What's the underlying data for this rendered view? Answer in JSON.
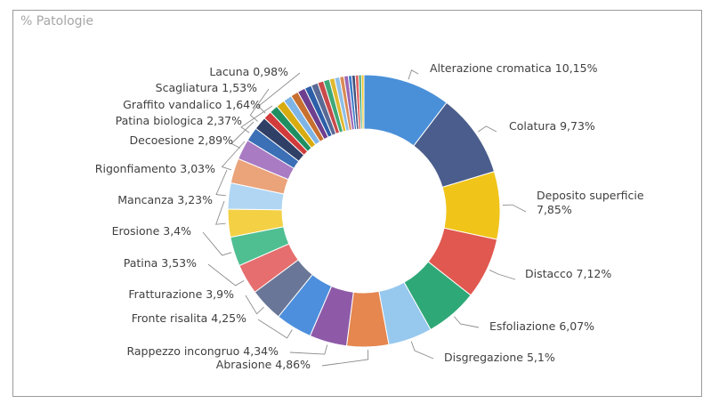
{
  "card": {
    "title": "% Patologie"
  },
  "chart_data": {
    "type": "pie",
    "variant": "donut",
    "title": "% Patologie",
    "unit": "%",
    "labels_visible": [
      "Lacuna 0,98%",
      "Scagliatura 1,53%",
      "Graffito vandalico 1,64%",
      "Patina biologica 2,37%",
      "Decoesione 2,89%",
      "Rigonfiamento 3,03%",
      "Mancanza 3,23%",
      "Erosione 3,4%",
      "Patina 3,53%",
      "Fratturazione 3,9%",
      "Fronte risalita 4,25%",
      "Rappezzo incongruo 4,34%",
      "Abrasione 4,86%",
      "Disgregazione 5,1%",
      "Esfoliazione 6,07%",
      "Distacco 7,12%",
      "Deposito superficie 7,85%",
      "Colatura 9,73%",
      "Alterazione cromatica 10,15%"
    ],
    "slices": [
      {
        "name": "Alterazione cromatica",
        "value": 10.15,
        "color": "#4a90d9",
        "label": [
          "Alterazione cromatica 10,15%"
        ]
      },
      {
        "name": "Colatura",
        "value": 9.73,
        "color": "#4a5d8c",
        "label": [
          "Colatura 9,73%"
        ]
      },
      {
        "name": "Deposito superficie",
        "value": 7.85,
        "color": "#f0c419",
        "label": [
          "Deposito superficie",
          "7,85%"
        ]
      },
      {
        "name": "Distacco",
        "value": 7.12,
        "color": "#e0584f",
        "label": [
          "Distacco 7,12%"
        ]
      },
      {
        "name": "Esfoliazione",
        "value": 6.07,
        "color": "#2fa877",
        "label": [
          "Esfoliazione 6,07%"
        ]
      },
      {
        "name": "Disgregazione",
        "value": 5.1,
        "color": "#97c8ee",
        "label": [
          "Disgregazione 5,1%"
        ]
      },
      {
        "name": "Abrasione",
        "value": 4.86,
        "color": "#e5874f",
        "label": [
          "Abrasione 4,86%"
        ]
      },
      {
        "name": "Rappezzo incongruo",
        "value": 4.34,
        "color": "#8e5aa8",
        "label": [
          "Rappezzo incongruo 4,34%"
        ]
      },
      {
        "name": "Fronte risalita",
        "value": 4.25,
        "color": "#4d8fdc",
        "label": [
          "Fronte risalita 4,25%"
        ]
      },
      {
        "name": "Fratturazione",
        "value": 3.9,
        "color": "#6a7697",
        "label": [
          "Fratturazione 3,9%"
        ]
      },
      {
        "name": "Patina",
        "value": 3.53,
        "color": "#e66e6e",
        "label": [
          "Patina 3,53%"
        ]
      },
      {
        "name": "Erosione",
        "value": 3.4,
        "color": "#4fbf92",
        "label": [
          "Erosione 3,4%"
        ]
      },
      {
        "name": "Mancanza",
        "value": 3.23,
        "color": "#f3d044",
        "label": [
          "Mancanza 3,23%"
        ]
      },
      {
        "name": "Rigonfiamento",
        "value": 3.03,
        "color": "#b0d6f3",
        "label": [
          "Rigonfiamento 3,03%"
        ]
      },
      {
        "name": "Decoesione",
        "value": 2.89,
        "color": "#eba37a",
        "label": [
          "Decoesione 2,89%"
        ]
      },
      {
        "name": "Patina biologica",
        "value": 2.37,
        "color": "#a97bc2",
        "label": [
          "Patina biologica 2,37%"
        ]
      },
      {
        "name": "Graffito vandalico",
        "value": 1.64,
        "color": "#3b6fb6",
        "label": [
          "Graffito vandalico 1,64%"
        ]
      },
      {
        "name": "Scagliatura",
        "value": 1.53,
        "color": "#2f3f66",
        "label": [
          "Scagliatura 1,53%"
        ]
      },
      {
        "name": "Lacuna",
        "value": 0.98,
        "color": "#d13b3b",
        "label": [
          "Lacuna 0,98%"
        ]
      },
      {
        "name": "",
        "value": 1.0,
        "color": "#1f8f62",
        "label": []
      },
      {
        "name": "",
        "value": 1.0,
        "color": "#d8ac10",
        "label": []
      },
      {
        "name": "",
        "value": 1.0,
        "color": "#7fb5e6",
        "label": []
      },
      {
        "name": "",
        "value": 0.9,
        "color": "#c8702f",
        "label": []
      },
      {
        "name": "",
        "value": 0.9,
        "color": "#6e3f8f",
        "label": []
      },
      {
        "name": "",
        "value": 0.8,
        "color": "#2d5fa8",
        "label": []
      },
      {
        "name": "",
        "value": 0.8,
        "color": "#5a6a96",
        "label": []
      },
      {
        "name": "",
        "value": 0.7,
        "color": "#c94a4a",
        "label": []
      },
      {
        "name": "",
        "value": 0.7,
        "color": "#3ea878",
        "label": []
      },
      {
        "name": "",
        "value": 0.6,
        "color": "#e0b830",
        "label": []
      },
      {
        "name": "",
        "value": 0.6,
        "color": "#8ebfe8",
        "label": []
      },
      {
        "name": "",
        "value": 0.5,
        "color": "#d98a55",
        "label": []
      },
      {
        "name": "",
        "value": 0.5,
        "color": "#9a66b5",
        "label": []
      },
      {
        "name": "",
        "value": 0.4,
        "color": "#3d7cc9",
        "label": []
      },
      {
        "name": "",
        "value": 0.4,
        "color": "#41507a",
        "label": []
      },
      {
        "name": "",
        "value": 0.4,
        "color": "#e06060",
        "label": []
      },
      {
        "name": "",
        "value": 0.3,
        "color": "#2f9e6e",
        "label": []
      },
      {
        "name": "",
        "value": 0.3,
        "color": "#efc52a",
        "label": []
      }
    ]
  }
}
